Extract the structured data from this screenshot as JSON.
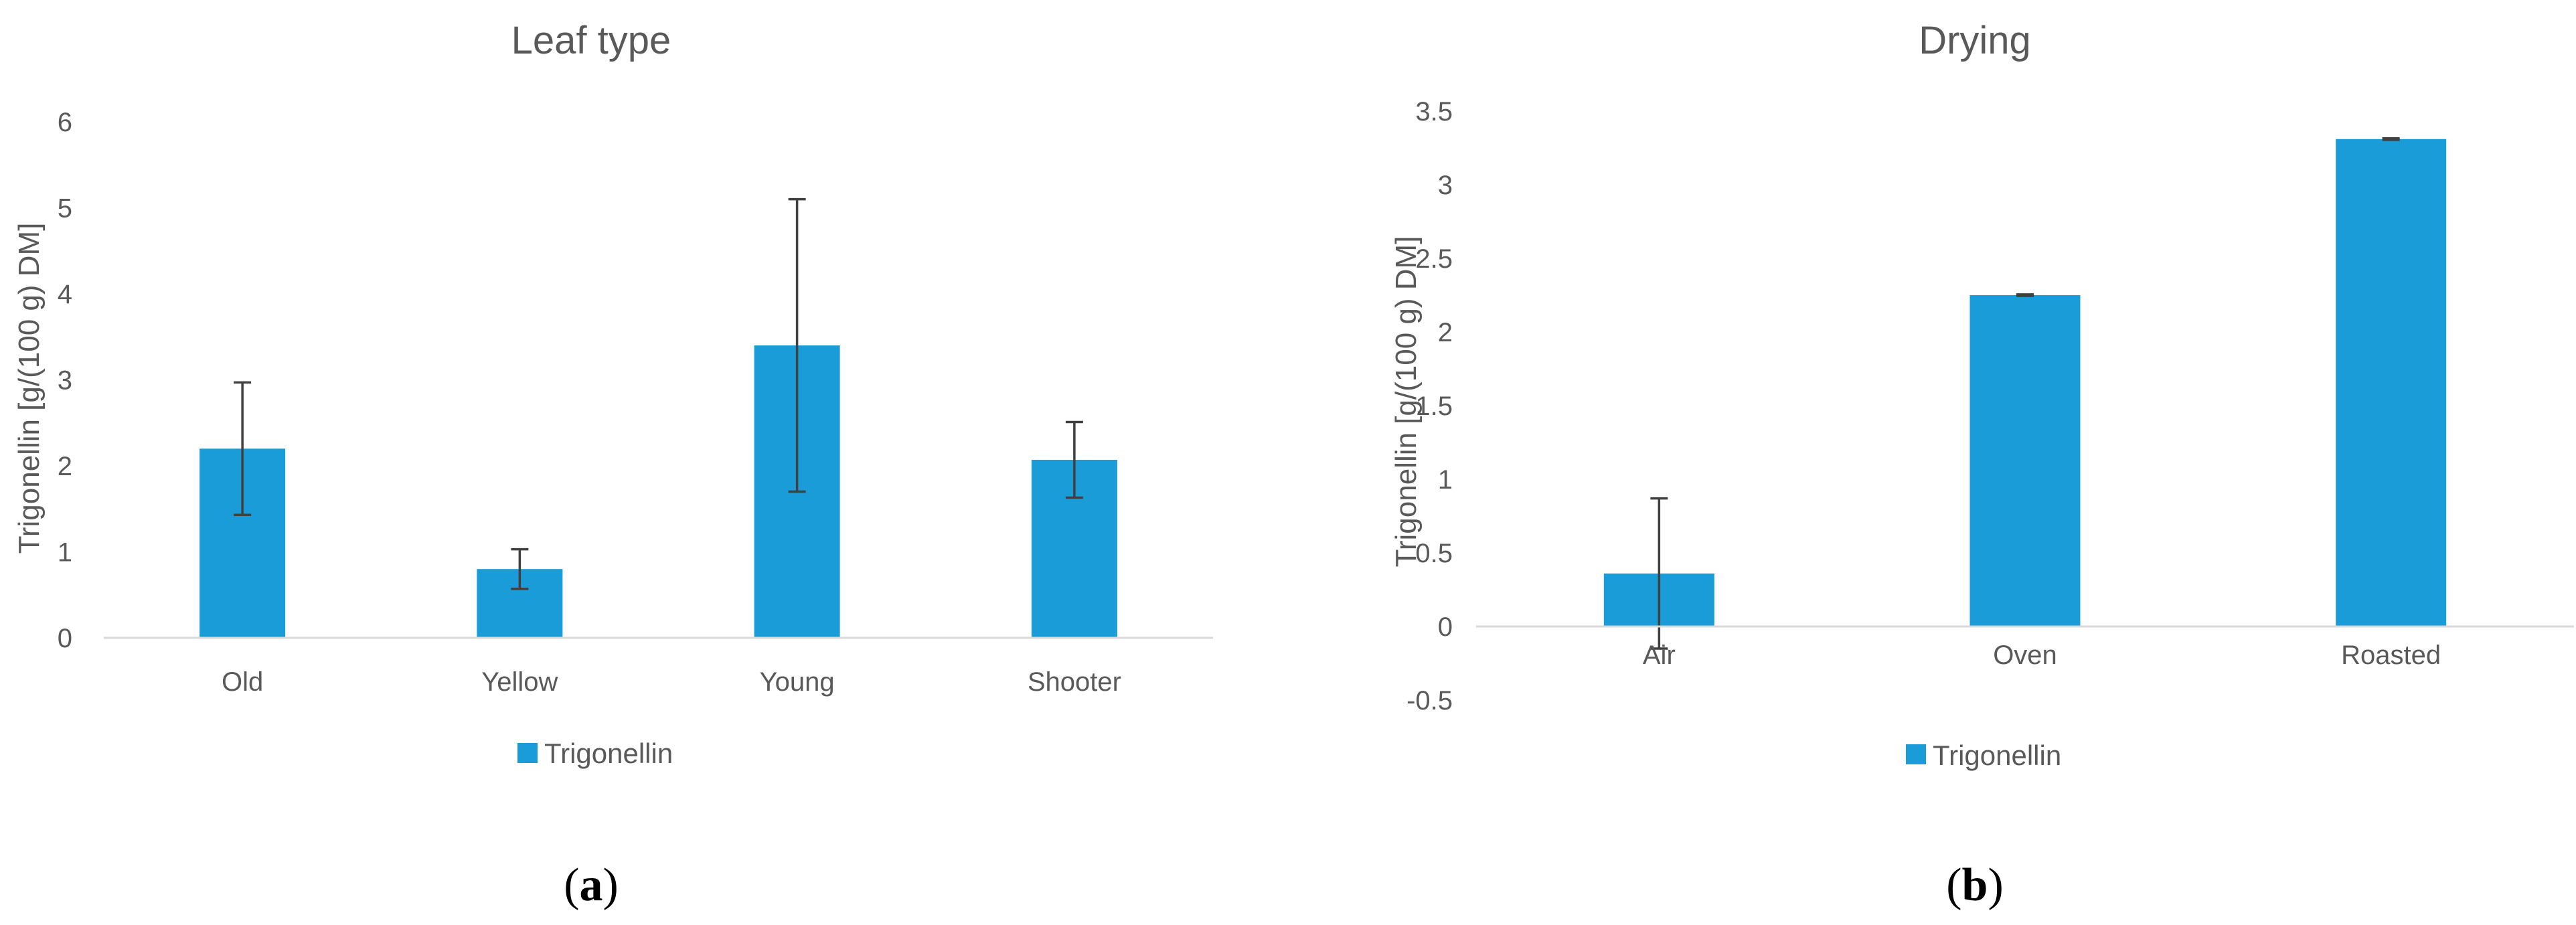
{
  "chart_data": [
    {
      "type": "bar",
      "title": "Leaf type",
      "xlabel": "",
      "ylabel": "Trigonellin [g/(100 g)  DM]",
      "categories": [
        "Old",
        "Yellow",
        "Young",
        "Shooter"
      ],
      "series": [
        {
          "name": "Trigonellin",
          "values": [
            2.2,
            0.8,
            3.4,
            2.07
          ],
          "error": [
            0.77,
            0.23,
            1.7,
            0.44
          ]
        }
      ],
      "ylim": [
        0,
        6
      ],
      "yticks": [
        0,
        1,
        2,
        3,
        4,
        5,
        6
      ],
      "ytick_labels": [
        "0",
        "1",
        "2",
        "3",
        "4",
        "5",
        "6"
      ],
      "grid": false,
      "legend": "bottom",
      "panel_label": {
        "open": "(",
        "letter": "a",
        "close": ")"
      }
    },
    {
      "type": "bar",
      "title": "Drying",
      "xlabel": "",
      "ylabel": "Trigonellin [g/(100 g)  DM]",
      "categories": [
        "Air",
        "Oven",
        "Roasted"
      ],
      "series": [
        {
          "name": "Trigonellin",
          "values": [
            0.36,
            2.25,
            3.31
          ],
          "error": [
            0.51,
            0.005,
            0.005
          ]
        }
      ],
      "ylim": [
        -0.5,
        3.5
      ],
      "yticks": [
        -0.5,
        0,
        0.5,
        1,
        1.5,
        2,
        2.5,
        3,
        3.5
      ],
      "ytick_labels": [
        "-0.5",
        "0",
        "0.5",
        "1",
        "1.5",
        "2",
        "2.5",
        "3",
        "3.5"
      ],
      "grid": false,
      "legend": "bottom",
      "panel_label": {
        "open": "(",
        "letter": "b",
        "close": ")"
      }
    }
  ],
  "colors": {
    "bar": "#1a9cd8",
    "error_bar": "#404040",
    "axis": "#d9d9d9",
    "text": "#595959"
  }
}
